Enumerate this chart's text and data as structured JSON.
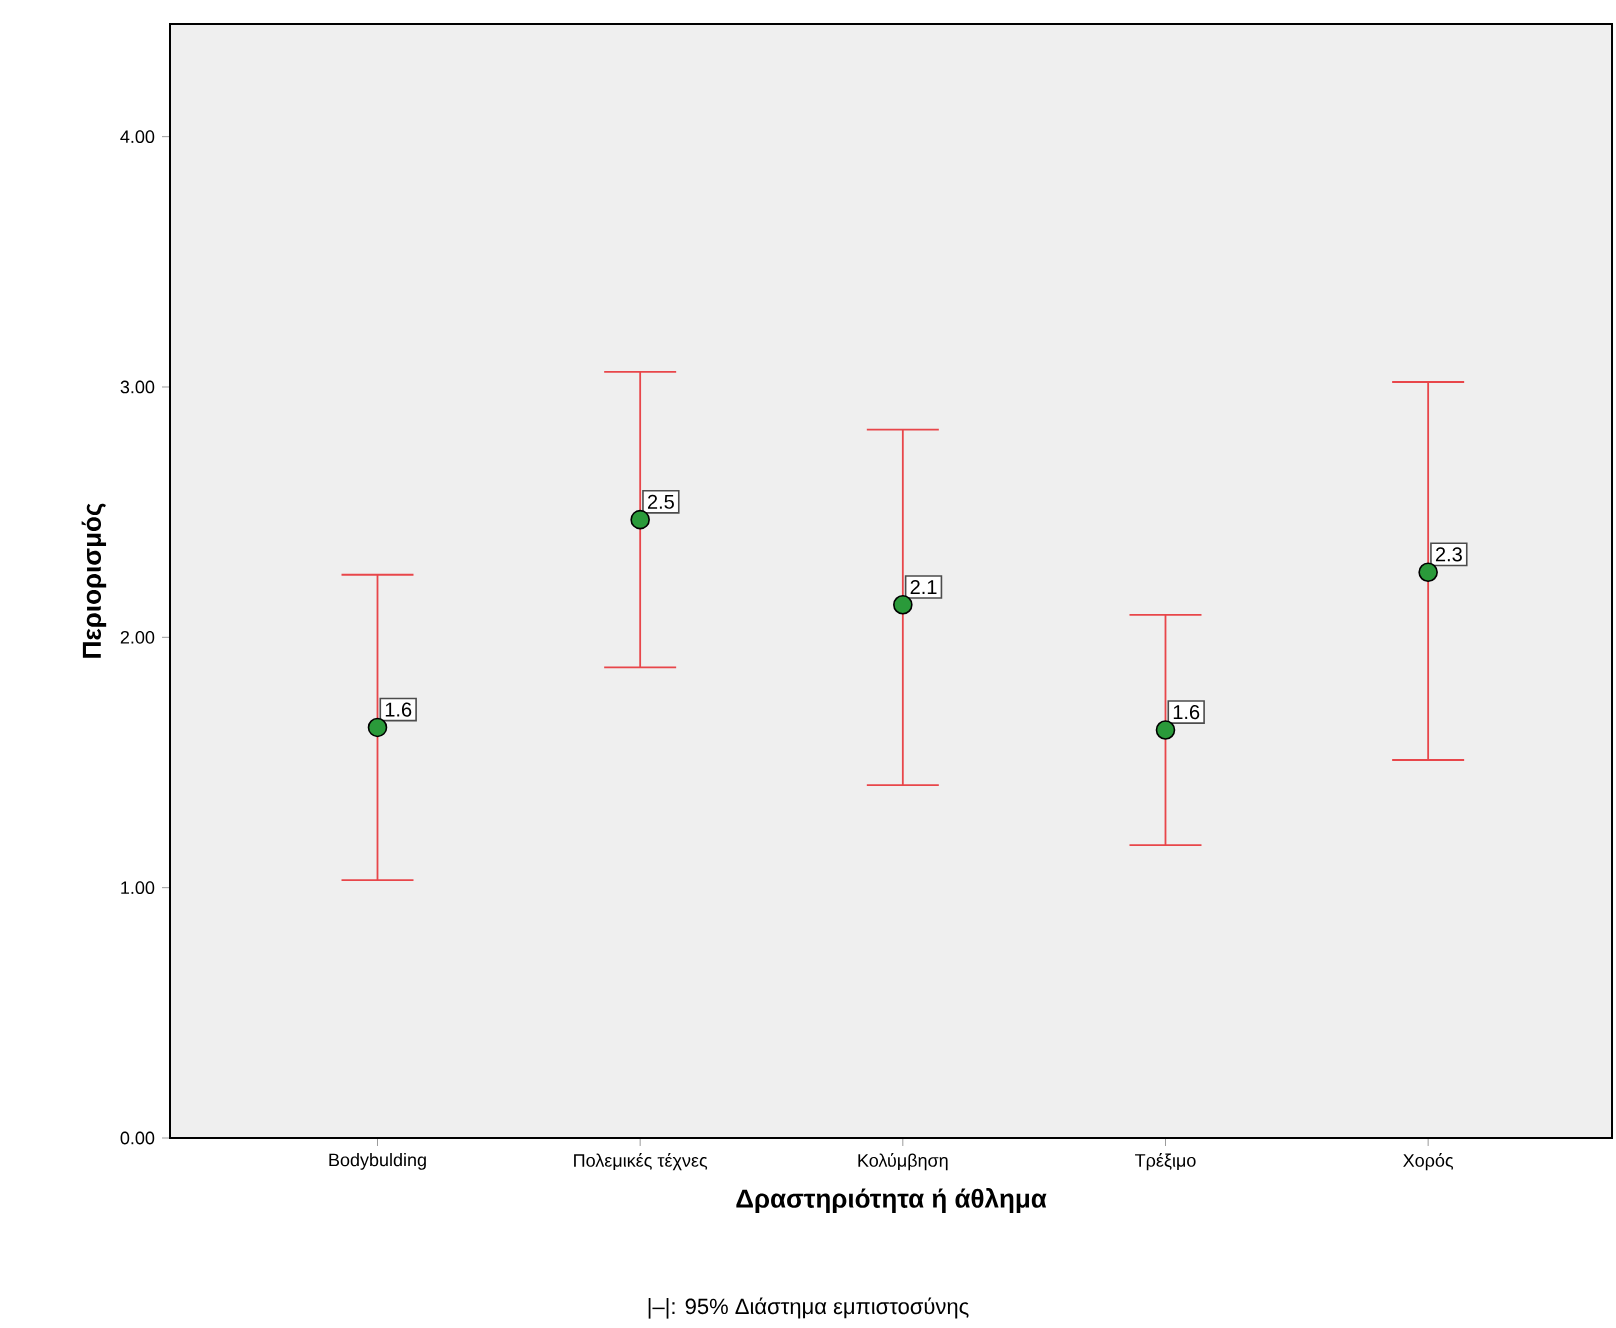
{
  "chart_data": {
    "type": "scatter",
    "xlabel": "Δραστηριότητα ή άθλημα",
    "ylabel": "Περιορισμός",
    "categories": [
      "Bodybulding",
      "Πολεμικές τέχνες",
      "Κολύμβηση",
      "Τρέξιμο",
      "Χορός"
    ],
    "values": [
      1.64,
      2.47,
      2.13,
      1.63,
      2.26
    ],
    "value_labels": [
      "1.6",
      "2.5",
      "2.1",
      "1.6",
      "2.3"
    ],
    "errors": [
      [
        1.03,
        2.25
      ],
      [
        1.88,
        3.06
      ],
      [
        1.41,
        2.83
      ],
      [
        1.17,
        2.09
      ],
      [
        1.51,
        3.02
      ]
    ],
    "color": "#2a9a3a",
    "marker": "circle",
    "grid": false,
    "ylim": [
      0,
      4.45
    ],
    "yticks": [
      {
        "value": 0,
        "label": "0.00"
      },
      {
        "value": 1,
        "label": "1.00"
      },
      {
        "value": 2,
        "label": "2.00"
      },
      {
        "value": 3,
        "label": "3.00"
      },
      {
        "value": 4,
        "label": "4.00"
      }
    ],
    "annotations": [
      "|–|: 95% Διάστημα εμπιστοσύνης"
    ]
  }
}
